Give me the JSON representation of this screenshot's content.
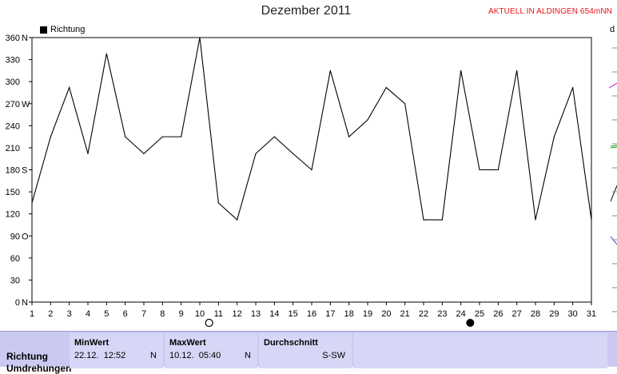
{
  "header": {
    "title": "Dezember 2011",
    "note": "AKTUELL IN ALDINGEN 654mNN"
  },
  "legend": {
    "label": "Richtung"
  },
  "edge_glyph": "d",
  "chart_data": {
    "type": "line",
    "title": "Dezember 2011",
    "x": [
      1,
      2,
      3,
      4,
      5,
      6,
      7,
      8,
      9,
      10,
      11,
      12,
      13,
      14,
      15,
      16,
      17,
      18,
      19,
      20,
      21,
      22,
      23,
      24,
      25,
      26,
      27,
      28,
      29,
      30,
      31
    ],
    "series": [
      {
        "name": "Richtung",
        "values": [
          135,
          225,
          292,
          202,
          338,
          225,
          202,
          225,
          225,
          360,
          135,
          112,
          202,
          225,
          202,
          180,
          315,
          225,
          248,
          292,
          270,
          112,
          112,
          315,
          180,
          180,
          315,
          112,
          225,
          292,
          112
        ]
      }
    ],
    "ylim": [
      0,
      360
    ],
    "y_ticks": [
      {
        "value": 0,
        "label": "0",
        "dir": "N"
      },
      {
        "value": 30,
        "label": "30",
        "dir": ""
      },
      {
        "value": 60,
        "label": "60",
        "dir": ""
      },
      {
        "value": 90,
        "label": "90",
        "dir": "O"
      },
      {
        "value": 120,
        "label": "120",
        "dir": ""
      },
      {
        "value": 150,
        "label": "150",
        "dir": ""
      },
      {
        "value": 180,
        "label": "180",
        "dir": "S"
      },
      {
        "value": 210,
        "label": "210",
        "dir": ""
      },
      {
        "value": 240,
        "label": "240",
        "dir": ""
      },
      {
        "value": 270,
        "label": "270",
        "dir": "W"
      },
      {
        "value": 300,
        "label": "300",
        "dir": ""
      },
      {
        "value": 330,
        "label": "330",
        "dir": ""
      },
      {
        "value": 360,
        "label": "360",
        "dir": "N"
      }
    ],
    "x_tick_labels": [
      "1",
      "2",
      "3",
      "4",
      "5",
      "6",
      "7",
      "8",
      "9",
      "10",
      "11",
      "12",
      "13",
      "14",
      "15",
      "16",
      "17",
      "18",
      "19",
      "20",
      "21",
      "22",
      "23",
      "24",
      "25",
      "26",
      "27",
      "28",
      "29",
      "30",
      "31"
    ],
    "grid": true,
    "moon_markers": [
      {
        "day": 10.5,
        "phase": "full-moon"
      },
      {
        "day": 24.5,
        "phase": "new-moon"
      }
    ]
  },
  "stats": {
    "row_label": "Richtung",
    "row_label_2": "Umdrehungen",
    "min": {
      "header": "MinWert",
      "date": "22.12.",
      "time": "12:52",
      "dir": "N"
    },
    "max": {
      "header": "MaxWert",
      "date": "10.12.",
      "time": "05:40",
      "dir": "N"
    },
    "avg": {
      "header": "Durchschnitt",
      "value": "S-SW"
    }
  },
  "colors": {
    "line": "#000000",
    "grid": "#7a7a7a",
    "panel": "#d6d6f6",
    "note": "#e8101a"
  }
}
